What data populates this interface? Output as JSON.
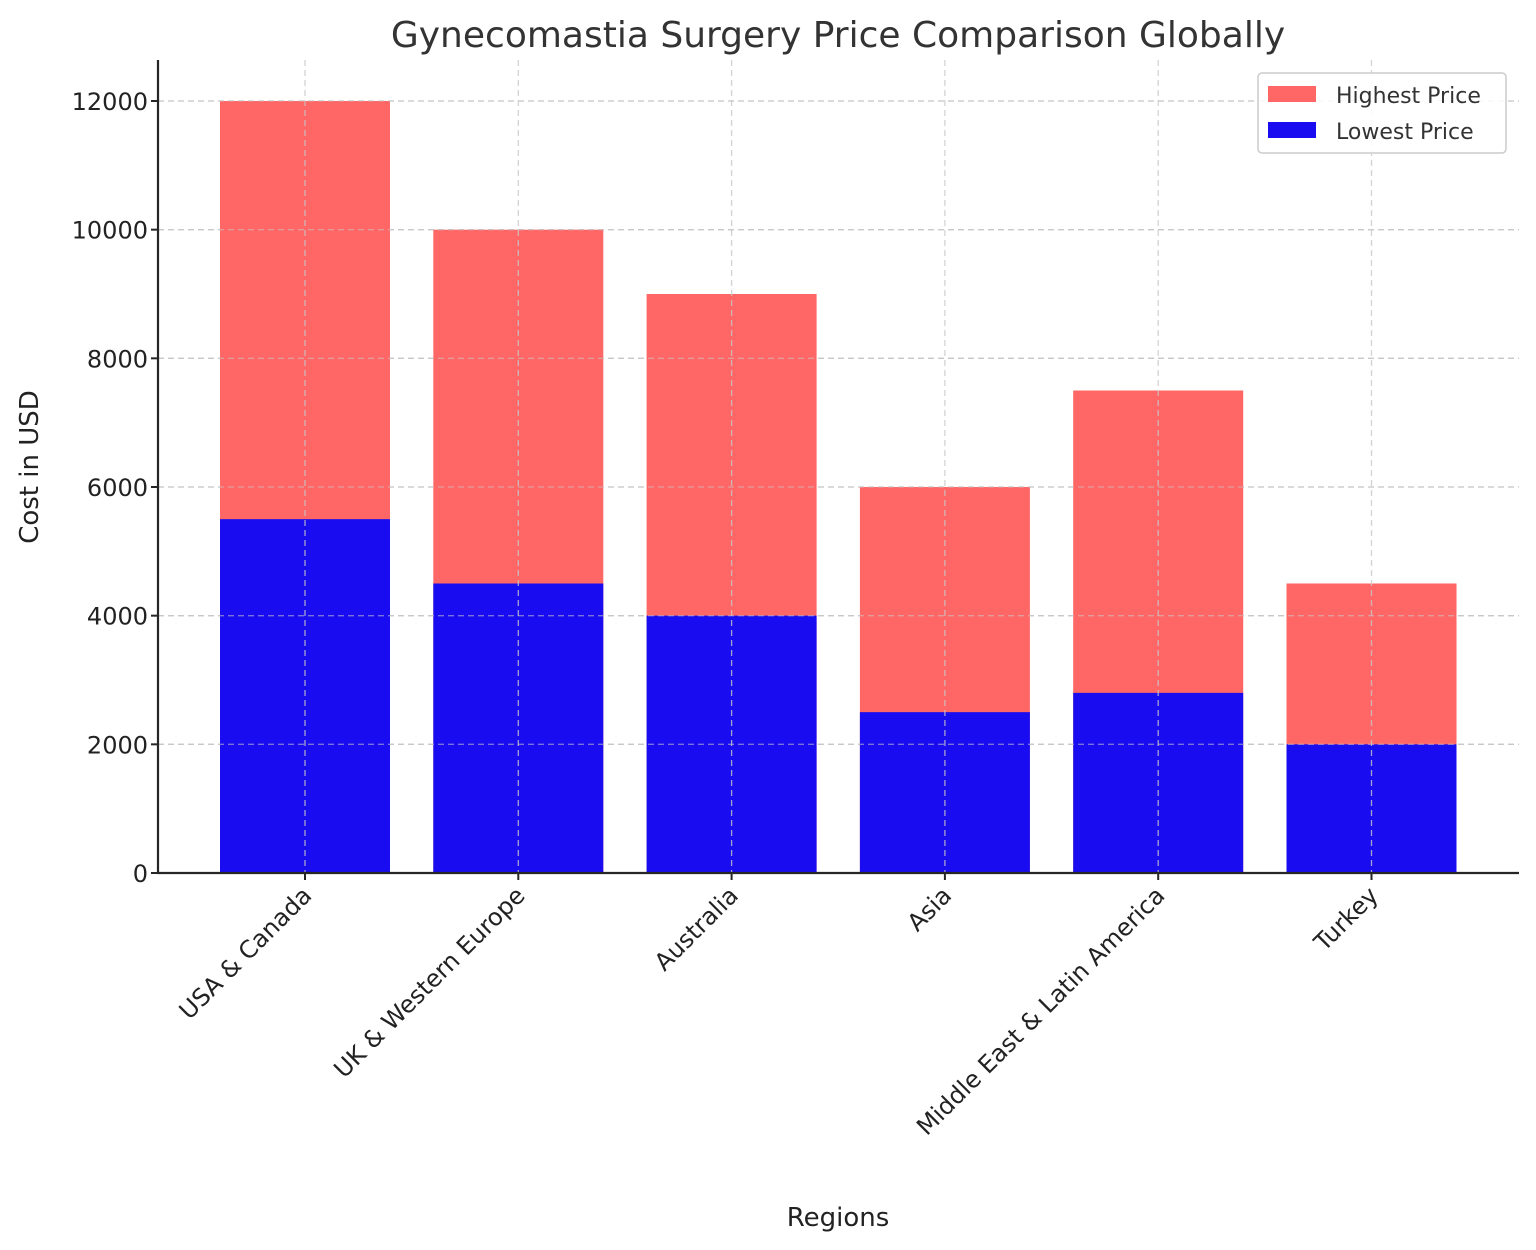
{
  "chart_data": {
    "type": "bar",
    "stacking": "overlay",
    "title": "Gynecomastia Surgery Price Comparison Globally",
    "xlabel": "Regions",
    "ylabel": "Cost in USD",
    "ylim": [
      0,
      12600
    ],
    "yticks": [
      0,
      2000,
      4000,
      6000,
      8000,
      10000,
      12000
    ],
    "ytick_labels": [
      "0",
      "2000",
      "4000",
      "6000",
      "8000",
      "10000",
      "12000"
    ],
    "grid": true,
    "legend_position": "top-right",
    "categories": [
      "USA & Canada",
      "UK & Western Europe",
      "Australia",
      "Asia",
      "Middle East & Latin America",
      "Turkey"
    ],
    "series": [
      {
        "name": "Highest Price",
        "color": "#ff6666",
        "values": [
          12000,
          10000,
          9000,
          6000,
          7500,
          4500
        ]
      },
      {
        "name": "Lowest Price",
        "color": "#1a0cf0",
        "values": [
          5500,
          4500,
          4000,
          2500,
          2800,
          2000
        ]
      }
    ]
  }
}
